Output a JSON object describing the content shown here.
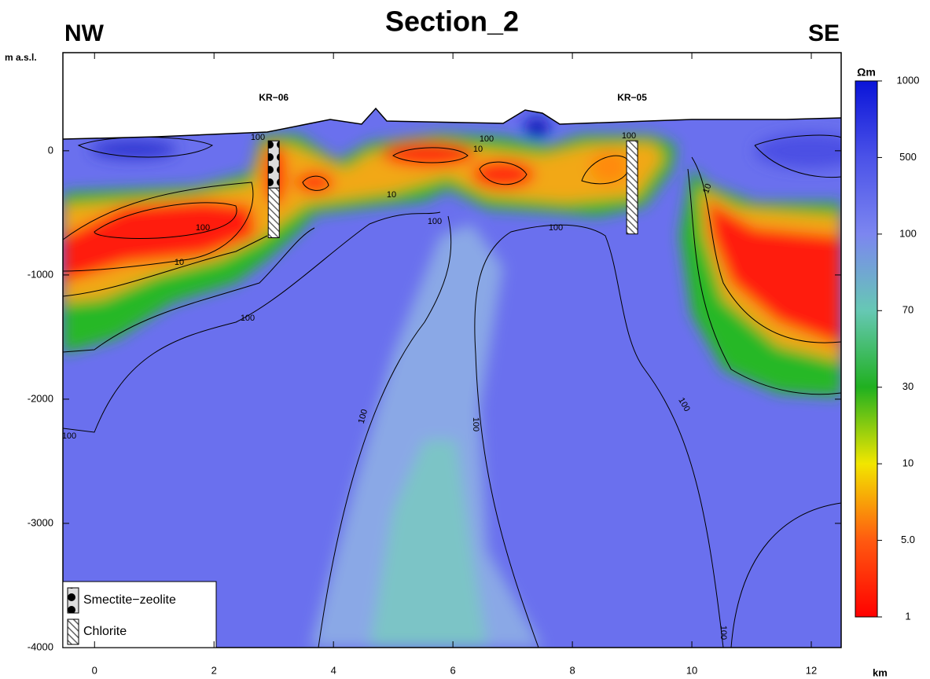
{
  "chart_data": {
    "type": "contour",
    "title": "Section_2",
    "left_label": "NW",
    "right_label": "SE",
    "y_label": "m a.s.l.",
    "x_label": "km",
    "xlim": [
      -0.53,
      12.5
    ],
    "xticks": [
      0,
      2,
      4,
      6,
      8,
      10,
      12
    ],
    "ylim": [
      -4000,
      790
    ],
    "yticks": [
      -4000,
      -3000,
      -2000,
      -1000,
      0
    ],
    "contour_levels": [
      1,
      10,
      100
    ],
    "colorbar": {
      "unit": "Ωm",
      "ticks": [
        1,
        {
          "value": 5,
          "label": "5.0"
        },
        10,
        30,
        70,
        100,
        500,
        1000
      ],
      "colors": [
        "#ff0000",
        "#ff5a10",
        "#f2e600",
        "#20b020",
        "#66c8b4",
        "#7c86f0",
        "#4b52e8",
        "#0a14d8"
      ]
    },
    "legend": [
      {
        "label": "Smectite−zeolite"
      },
      {
        "label": "Chlorite"
      }
    ],
    "wells": [
      {
        "name": "KR−06",
        "x": 3.0,
        "intervals": [
          {
            "legend": 0,
            "top": 80,
            "bottom": -300
          },
          {
            "legend": 1,
            "top": -300,
            "bottom": -700
          }
        ]
      },
      {
        "name": "KR−05",
        "x": 9.0,
        "intervals": [
          {
            "legend": 1,
            "top": 80,
            "bottom": -670
          }
        ]
      }
    ]
  }
}
